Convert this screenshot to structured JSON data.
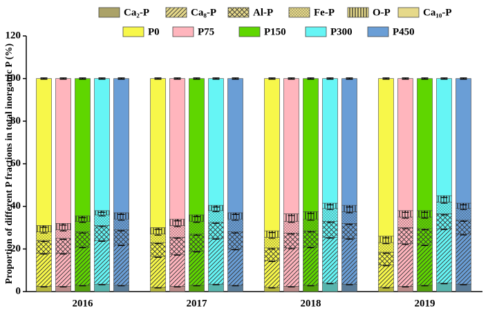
{
  "chart_data": {
    "type": "stacked-bar",
    "y_label": "Proportion of different P fractions in total inorganic P (%)",
    "categories": [
      "2016",
      "2017",
      "2018",
      "2019"
    ],
    "groups": [
      {
        "name": "P0",
        "color": "#f7f74a"
      },
      {
        "name": "P75",
        "color": "#ffb5bd"
      },
      {
        "name": "P150",
        "color": "#5fd600"
      },
      {
        "name": "P300",
        "color": "#66f5f5"
      },
      {
        "name": "P450",
        "color": "#6a9ed6"
      }
    ],
    "fractions": [
      {
        "name": "Ca₂-P",
        "pattern": "shade"
      },
      {
        "name": "Ca₈-P",
        "pattern": "diagonal"
      },
      {
        "name": "Al-P",
        "pattern": "cross"
      },
      {
        "name": "Fe-P",
        "pattern": "dots"
      },
      {
        "name": "O-P",
        "pattern": "vertical"
      },
      {
        "name": "Ca₁₀-P",
        "pattern": "none"
      }
    ],
    "fraction_legend_color": "#e6d98a",
    "values": [
      [
        [
          2.5,
          15.5,
          6,
          4,
          3,
          69
        ],
        [
          2.5,
          15.5,
          7,
          4,
          3,
          68
        ],
        [
          3,
          18,
          7,
          5,
          2.5,
          64.5
        ],
        [
          3.5,
          20.5,
          7,
          5,
          2,
          62
        ],
        [
          3,
          19,
          7,
          5,
          3,
          63
        ]
      ],
      [
        [
          2,
          14.5,
          6.5,
          4,
          3,
          70
        ],
        [
          2.5,
          15,
          8,
          5.5,
          3,
          66
        ],
        [
          3,
          16,
          8,
          6,
          3,
          64
        ],
        [
          3.5,
          21.5,
          7.5,
          5.5,
          2.5,
          59.5
        ],
        [
          3,
          17,
          8,
          6,
          3,
          63
        ]
      ],
      [
        [
          2,
          12.5,
          6,
          5,
          3,
          71.5
        ],
        [
          2.5,
          18,
          7,
          5.5,
          3.5,
          63.5
        ],
        [
          3,
          18,
          7.5,
          5.5,
          3.5,
          62.5
        ],
        [
          4,
          21.5,
          7.5,
          6,
          2.5,
          58.5
        ],
        [
          3.5,
          21.5,
          7,
          5.5,
          3,
          59.5
        ]
      ],
      [
        [
          2,
          10.5,
          6,
          4.5,
          3,
          74
        ],
        [
          2.5,
          20,
          7.5,
          5,
          3,
          62
        ],
        [
          3,
          19,
          7.5,
          5.5,
          3,
          62
        ],
        [
          4,
          25.5,
          7,
          5.5,
          3,
          55
        ],
        [
          3.5,
          23.5,
          6.5,
          5.5,
          2.5,
          58.5
        ]
      ]
    ],
    "errors": [
      [
        [
          0.3,
          0.4,
          0.5,
          0.5,
          0.8,
          0.3
        ],
        [
          0.3,
          0.4,
          0.5,
          0.5,
          0.8,
          0.3
        ],
        [
          0.3,
          0.4,
          0.5,
          0.5,
          0.8,
          0.3
        ],
        [
          0.3,
          0.4,
          0.5,
          0.5,
          0.8,
          0.3
        ],
        [
          0.3,
          0.4,
          0.5,
          0.5,
          0.8,
          0.3
        ]
      ],
      [
        [
          0.3,
          0.4,
          0.5,
          0.5,
          0.8,
          0.3
        ],
        [
          0.3,
          0.4,
          0.5,
          0.5,
          0.8,
          0.3
        ],
        [
          0.3,
          0.4,
          0.5,
          0.5,
          0.8,
          0.3
        ],
        [
          0.3,
          0.4,
          0.5,
          0.5,
          0.8,
          0.3
        ],
        [
          0.3,
          0.4,
          0.5,
          0.5,
          0.8,
          0.3
        ]
      ],
      [
        [
          0.3,
          0.4,
          0.5,
          0.5,
          0.8,
          0.3
        ],
        [
          0.3,
          0.4,
          0.5,
          0.5,
          0.8,
          0.3
        ],
        [
          0.3,
          0.4,
          0.5,
          0.5,
          0.8,
          0.3
        ],
        [
          0.3,
          0.4,
          0.5,
          0.5,
          0.8,
          0.3
        ],
        [
          0.3,
          0.4,
          0.5,
          0.5,
          0.8,
          0.3
        ]
      ],
      [
        [
          0.3,
          0.4,
          0.5,
          0.5,
          0.8,
          0.3
        ],
        [
          0.3,
          0.4,
          0.5,
          0.5,
          0.8,
          0.3
        ],
        [
          0.3,
          0.4,
          0.5,
          0.5,
          0.8,
          0.3
        ],
        [
          0.3,
          0.4,
          0.5,
          0.5,
          0.8,
          0.3
        ],
        [
          0.3,
          0.4,
          0.5,
          0.5,
          0.8,
          0.3
        ]
      ]
    ],
    "ylim": [
      0,
      120
    ],
    "yticks": [
      0,
      20,
      40,
      60,
      80,
      100,
      120
    ]
  }
}
